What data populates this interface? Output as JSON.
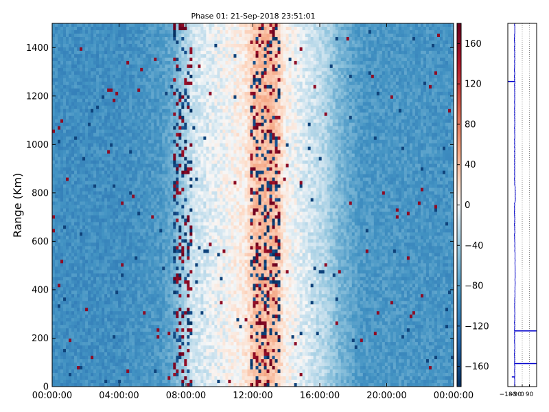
{
  "chart_data": [
    {
      "type": "heatmap",
      "title": "Phase 01: 21-Sep-2018 23:51:01",
      "ylabel": "Range (Km)",
      "xlabel": "",
      "x_tick_labels": [
        "00:00:00",
        "04:00:00",
        "08:00:00",
        "12:00:00",
        "16:00:00",
        "20:00:00",
        "00:00:00"
      ],
      "x_ticks_hours": [
        0,
        4,
        8,
        12,
        16,
        20,
        24
      ],
      "xlim_hours": [
        0,
        24
      ],
      "y_ticks": [
        0,
        200,
        400,
        600,
        800,
        1000,
        1200,
        1400
      ],
      "ylim": [
        0,
        1500
      ],
      "colormap": "RdBu_r",
      "clim": [
        -180,
        180
      ],
      "colorbar_ticks": [
        -160,
        -120,
        -80,
        -40,
        0,
        40,
        80,
        120,
        160
      ],
      "background_phase_by_hour": [
        [
          0,
          -95
        ],
        [
          4,
          -95
        ],
        [
          6.5,
          -85
        ],
        [
          7.2,
          -70
        ],
        [
          8.2,
          -20
        ],
        [
          11.5,
          10
        ],
        [
          12.2,
          40
        ],
        [
          13.3,
          40
        ],
        [
          14,
          5
        ],
        [
          16.3,
          -30
        ],
        [
          17.2,
          -60
        ],
        [
          18.5,
          -85
        ],
        [
          24,
          -90
        ]
      ],
      "grid": false
    },
    {
      "type": "line",
      "title": "",
      "xlabel": "",
      "ylabel": "",
      "x_tick_labels": [
        "-180",
        "-90",
        "0",
        "90"
      ],
      "x_ticks": [
        -180,
        -90,
        0,
        90
      ],
      "xlim": [
        -180,
        180
      ],
      "ylim": [
        0,
        1500
      ],
      "grid": true,
      "series_color": "#0000cc",
      "spikes": [
        {
          "range_km": 1260,
          "phase": -180
        },
        {
          "range_km": 230,
          "phase": 180
        },
        {
          "range_km": 95,
          "phase": 180
        },
        {
          "range_km": 40,
          "phase": -130
        }
      ]
    }
  ]
}
